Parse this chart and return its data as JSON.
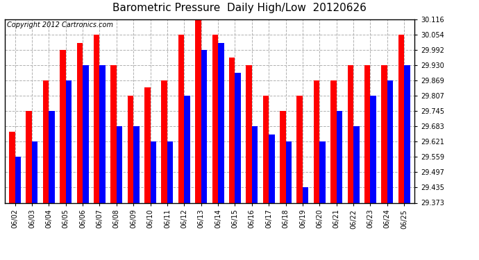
{
  "title": "Barometric Pressure  Daily High/Low  20120626",
  "copyright": "Copyright 2012 Cartronics.com",
  "dates": [
    "06/02",
    "06/03",
    "06/04",
    "06/05",
    "06/06",
    "06/07",
    "06/08",
    "06/09",
    "06/10",
    "06/11",
    "06/12",
    "06/13",
    "06/14",
    "06/15",
    "06/16",
    "06/17",
    "06/18",
    "06/19",
    "06/20",
    "06/21",
    "06/22",
    "06/23",
    "06/24",
    "06/25"
  ],
  "high": [
    29.66,
    29.745,
    29.869,
    29.992,
    30.02,
    30.054,
    29.93,
    29.807,
    29.84,
    29.869,
    30.054,
    30.116,
    30.054,
    29.961,
    29.93,
    29.807,
    29.745,
    29.807,
    29.869,
    29.869,
    29.93,
    29.93,
    29.93,
    30.054
  ],
  "low": [
    29.559,
    29.621,
    29.745,
    29.869,
    29.93,
    29.93,
    29.683,
    29.683,
    29.621,
    29.621,
    29.807,
    29.992,
    30.02,
    29.9,
    29.683,
    29.65,
    29.621,
    29.435,
    29.621,
    29.745,
    29.683,
    29.807,
    29.869,
    29.93
  ],
  "high_color": "#ff0000",
  "low_color": "#0000ff",
  "bg_color": "#ffffff",
  "grid_color": "#b0b0b0",
  "ymin": 29.373,
  "ymax": 30.116,
  "yticks": [
    29.373,
    29.435,
    29.497,
    29.559,
    29.621,
    29.683,
    29.745,
    29.807,
    29.869,
    29.93,
    29.992,
    30.054,
    30.116
  ],
  "title_fontsize": 11,
  "copyright_fontsize": 7,
  "tick_fontsize": 7,
  "bar_width": 0.35
}
